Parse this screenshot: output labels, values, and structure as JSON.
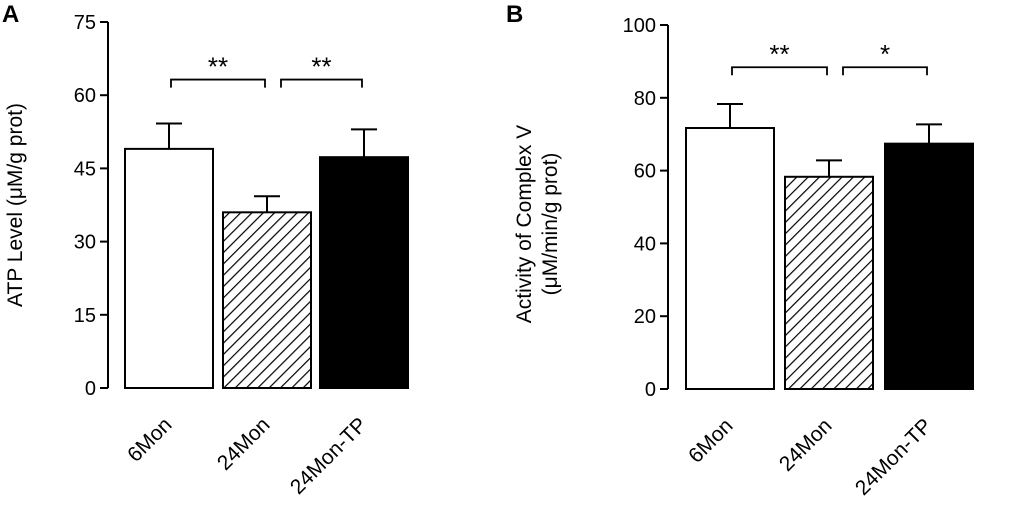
{
  "chart_data": [
    {
      "type": "bar",
      "panel_label": "A",
      "categories": [
        "6Mon",
        "24Mon",
        "24Mon-TP"
      ],
      "values": [
        49,
        36,
        47.3
      ],
      "errors": [
        5.2,
        3.3,
        5.7
      ],
      "patterns": [
        "white",
        "hatched",
        "black"
      ],
      "ylabel": "ATP Level (μM/g prot)",
      "ylabel_lines": [
        "ATP Level (μM/g prot)"
      ],
      "ylim": [
        0,
        75
      ],
      "yticks": [
        0,
        15,
        30,
        45,
        60,
        75
      ],
      "significance": [
        {
          "from": 0,
          "to": 1,
          "label": "**",
          "y": 63.2
        },
        {
          "from": 1,
          "to": 2,
          "label": "**",
          "y": 63.2
        }
      ]
    },
    {
      "type": "bar",
      "panel_label": "B",
      "categories": [
        "6Mon",
        "24Mon",
        "24Mon-TP"
      ],
      "values": [
        71.7,
        58.3,
        67.4
      ],
      "errors": [
        6.6,
        4.5,
        5.3
      ],
      "patterns": [
        "white",
        "hatched",
        "black"
      ],
      "ylabel": "Activity of Complex V (μM/min/g prot)",
      "ylabel_lines": [
        "Activity of Complex V",
        "(μM/min/g prot)"
      ],
      "ylim": [
        0,
        100
      ],
      "yticks": [
        0,
        20,
        40,
        60,
        80,
        100
      ],
      "significance": [
        {
          "from": 0,
          "to": 1,
          "label": "**",
          "y": 88.4
        },
        {
          "from": 1,
          "to": 2,
          "label": "*",
          "y": 88.4
        }
      ]
    }
  ]
}
